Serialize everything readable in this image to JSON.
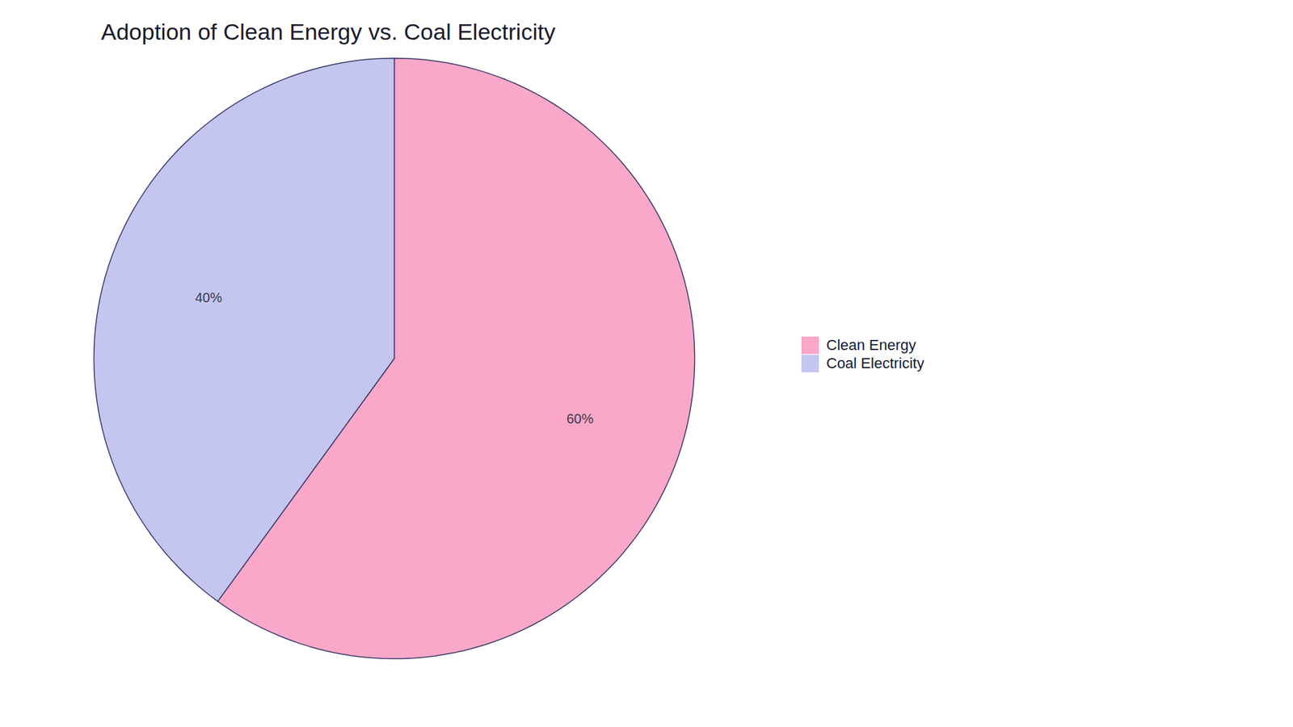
{
  "chart_data": {
    "type": "pie",
    "title": "Adoption of Clean Energy vs. Coal Electricity",
    "categories": [
      "Clean Energy",
      "Coal Electricity"
    ],
    "values": [
      60,
      40
    ],
    "value_labels": [
      "60%",
      "40%"
    ],
    "colors": [
      "#F9A8C9",
      "#C5C6F0"
    ],
    "data_labels": true,
    "legend": "right"
  }
}
